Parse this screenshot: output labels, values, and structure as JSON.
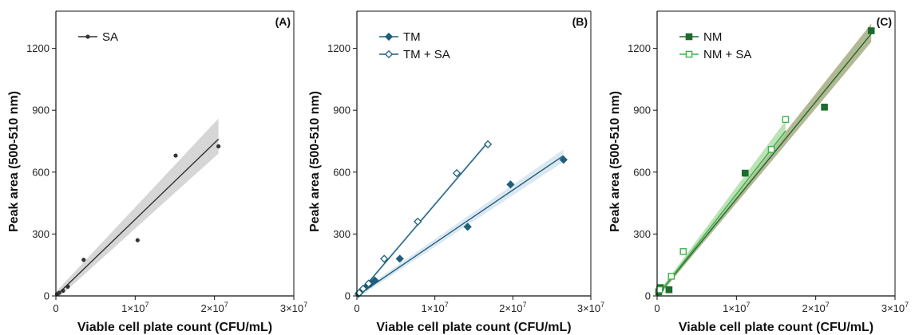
{
  "chart_data": [
    {
      "type": "scatter",
      "panel_label": "(A)",
      "xlabel": "Viable cell plate count (CFU/mL)",
      "ylabel": "Peak area (500-510 nm)",
      "xlim": [
        0,
        30000000
      ],
      "ylim": [
        0,
        1380
      ],
      "x_ticks": [
        0,
        10000000,
        20000000,
        30000000
      ],
      "x_tick_labels": [
        "0",
        "1×10",
        "2×10",
        "3×10"
      ],
      "x_tick_exp": [
        "",
        "7",
        "7",
        "7"
      ],
      "y_ticks": [
        0,
        300,
        600,
        900,
        1200
      ],
      "y_tick_labels": [
        "0",
        "300",
        "600",
        "900",
        "1200"
      ],
      "legend_position": "top-left",
      "series": [
        {
          "name": "SA",
          "marker": "dot",
          "color": "#333333",
          "band_color": "#c8c8c8",
          "x": [
            150000,
            400000,
            900000,
            1500000,
            3500000,
            10300000,
            15100000,
            20500000
          ],
          "y": [
            8,
            15,
            25,
            45,
            175,
            270,
            680,
            725
          ],
          "fit": {
            "x": [
              0,
              20500000
            ],
            "y": [
              0,
              760
            ]
          },
          "band": {
            "x": [
              0,
              20500000
            ],
            "lower": [
              -20,
              690
            ],
            "upper": [
              20,
              860
            ]
          }
        }
      ]
    },
    {
      "type": "scatter",
      "panel_label": "(B)",
      "xlabel": "Viable cell plate count (CFU/mL)",
      "ylabel": "Peak area (500-510 nm)",
      "xlim": [
        0,
        30000000
      ],
      "ylim": [
        0,
        1380
      ],
      "x_ticks": [
        0,
        10000000,
        20000000,
        30000000
      ],
      "x_tick_labels": [
        "0",
        "1×10",
        "2×10",
        "3×10"
      ],
      "x_tick_exp": [
        "",
        "7",
        "7",
        "7"
      ],
      "y_ticks": [
        0,
        300,
        600,
        900,
        1200
      ],
      "y_tick_labels": [
        "0",
        "300",
        "600",
        "900",
        "1200"
      ],
      "legend_position": "top-left",
      "series": [
        {
          "name": "TM",
          "marker": "diamond-filled",
          "color": "#1f5f7a",
          "band_color": "#cfe0ee",
          "x": [
            200000,
            500000,
            1200000,
            1800000,
            2300000,
            5500000,
            14200000,
            19700000,
            26500000
          ],
          "y": [
            10,
            22,
            45,
            60,
            75,
            180,
            335,
            540,
            660
          ],
          "fit": {
            "x": [
              0,
              26500000
            ],
            "y": [
              0,
              680
            ]
          },
          "band": {
            "x": [
              0,
              26500000
            ],
            "lower": [
              -12,
              650
            ],
            "upper": [
              12,
              710
            ]
          }
        },
        {
          "name": "TM + SA",
          "marker": "diamond-open",
          "color": "#1f5f7a",
          "band_color": "#cfe0ee",
          "x": [
            300000,
            800000,
            1500000,
            3500000,
            7800000,
            12800000,
            16800000
          ],
          "y": [
            15,
            35,
            60,
            180,
            360,
            595,
            735
          ],
          "fit": {
            "x": [
              0,
              16800000
            ],
            "y": [
              0,
              745
            ]
          },
          "band": {
            "x": [
              0,
              16800000
            ],
            "lower": [
              -8,
              735
            ],
            "upper": [
              8,
              755
            ]
          }
        }
      ]
    },
    {
      "type": "scatter",
      "panel_label": "(C)",
      "xlabel": "Viable cell plate count (CFU/mL)",
      "ylabel": "Peak area (500-510 nm)",
      "xlim": [
        0,
        30000000
      ],
      "ylim": [
        0,
        1380
      ],
      "x_ticks": [
        0,
        10000000,
        20000000,
        30000000
      ],
      "x_tick_labels": [
        "0",
        "1×10",
        "2×10",
        "3×10"
      ],
      "x_tick_exp": [
        "",
        "7",
        "7",
        "7"
      ],
      "y_ticks": [
        0,
        300,
        600,
        900,
        1200
      ],
      "y_tick_labels": [
        "0",
        "300",
        "600",
        "900",
        "1200"
      ],
      "legend_position": "top-left",
      "series": [
        {
          "name": "NM",
          "marker": "square-filled",
          "color": "#1e6b2e",
          "band_color": "#9aa070",
          "x": [
            200000,
            400000,
            1500000,
            11100000,
            21100000,
            27000000
          ],
          "y": [
            20,
            40,
            30,
            595,
            915,
            1285
          ],
          "fit": {
            "x": [
              0,
              27000000
            ],
            "y": [
              0,
              1270
            ]
          },
          "band": {
            "x": [
              0,
              27000000
            ],
            "lower": [
              -10,
              1230
            ],
            "upper": [
              10,
              1320
            ]
          }
        },
        {
          "name": "NM + SA",
          "marker": "square-open",
          "color": "#3cb34a",
          "band_color": "#a8d8a0",
          "x": [
            300000,
            1800000,
            3300000,
            14400000,
            16200000
          ],
          "y": [
            30,
            95,
            215,
            710,
            855
          ],
          "fit": {
            "x": [
              0,
              16200000
            ],
            "y": [
              0,
              800
            ]
          },
          "band": {
            "x": [
              0,
              16200000
            ],
            "lower": [
              -10,
              780
            ],
            "upper": [
              10,
              850
            ]
          }
        }
      ]
    }
  ]
}
